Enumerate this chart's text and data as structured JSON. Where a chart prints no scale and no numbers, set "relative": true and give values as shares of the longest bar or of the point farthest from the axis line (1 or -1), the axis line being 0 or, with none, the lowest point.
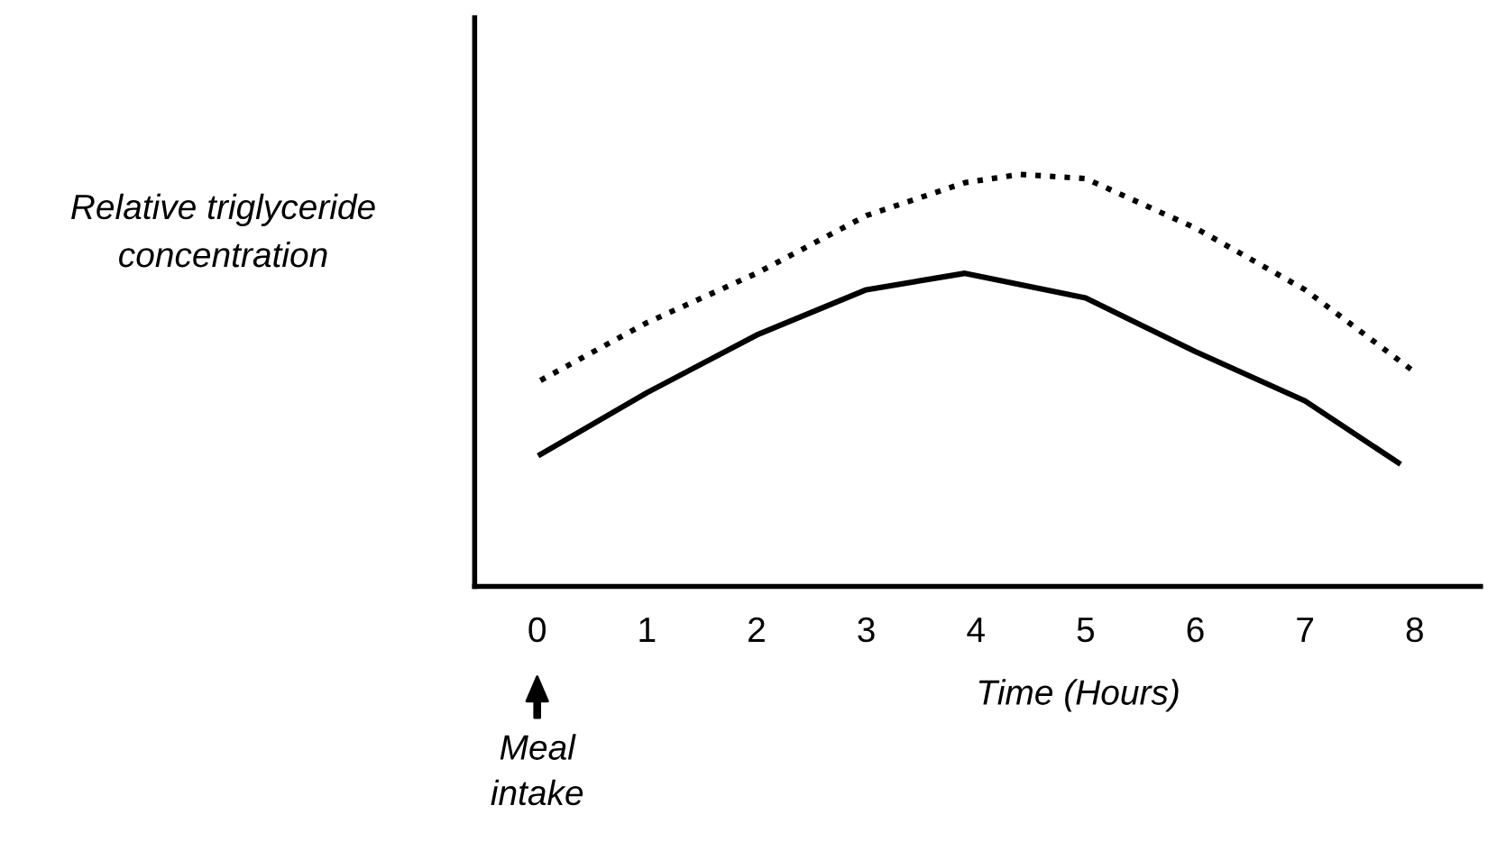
{
  "chart_data": {
    "type": "line",
    "relative": true,
    "xlabel": "Time (Hours)",
    "ylabel": "Relative triglyceride\nconcentration",
    "xlim": [
      -0.57,
      8.6
    ],
    "xticks": [
      0,
      1,
      2,
      3,
      4,
      5,
      6,
      7,
      8
    ],
    "grid": false,
    "legend": false,
    "marker": "none",
    "tick_labels": "x",
    "annotations": [
      "Meal\nintake"
    ],
    "series": [
      {
        "color": "#000000",
        "line_style": "dotted",
        "x": [
          0.03,
          1,
          2,
          3,
          3.9,
          4.4,
          5,
          6,
          7,
          8.0
        ],
        "values": [
          0.5,
          0.64,
          0.76,
          0.9,
          0.98,
          1.0,
          0.99,
          0.87,
          0.72,
          0.52
        ]
      },
      {
        "color": "#000000",
        "line_style": "solid",
        "x": [
          0.03,
          1,
          2,
          3,
          3.9,
          5,
          6,
          7,
          7.85
        ],
        "values": [
          0.32,
          0.47,
          0.61,
          0.72,
          0.76,
          0.7,
          0.57,
          0.45,
          0.3
        ]
      }
    ]
  }
}
